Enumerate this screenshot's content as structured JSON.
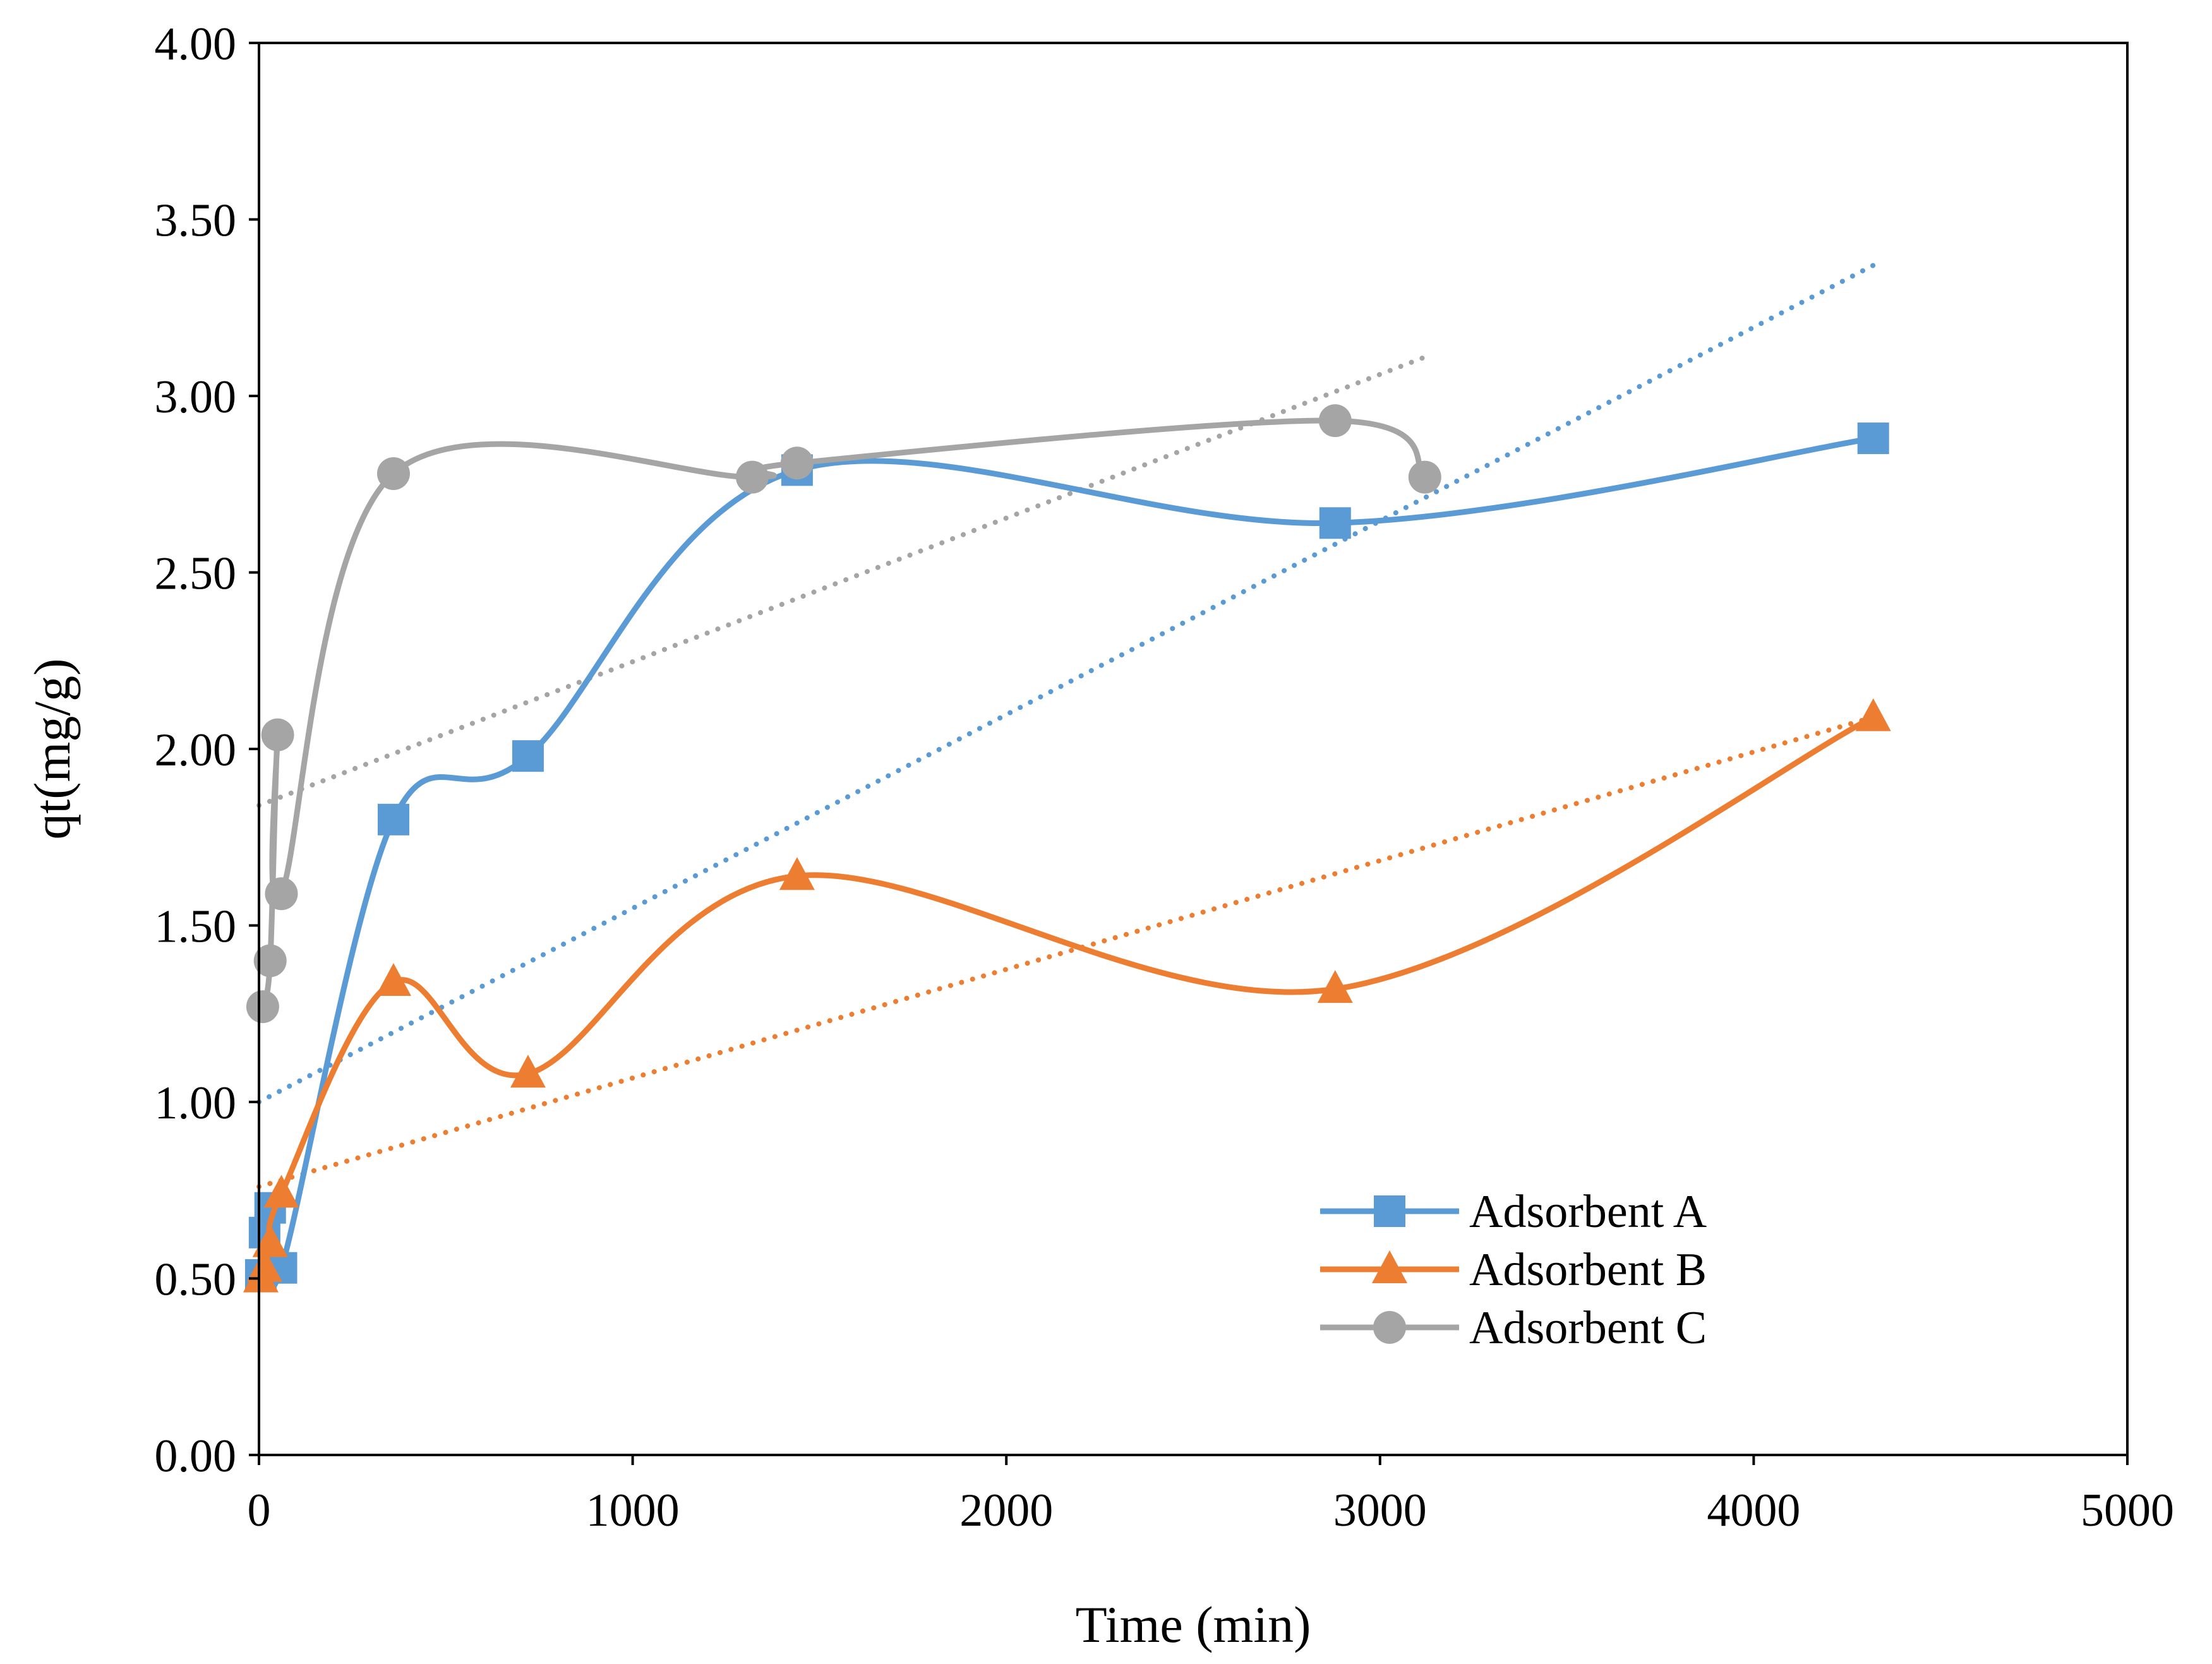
{
  "chart_data": {
    "type": "line",
    "title": "",
    "xlabel": "Time (min)",
    "ylabel": "qt(mg/g)",
    "xlim": [
      0,
      5000
    ],
    "ylim": [
      0,
      4
    ],
    "xticks": [
      0,
      1000,
      2000,
      3000,
      4000,
      5000
    ],
    "xtick_labels": [
      "0",
      "1000",
      "2000",
      "3000",
      "4000",
      "5000"
    ],
    "yticks": [
      0,
      0.5,
      1,
      1.5,
      2,
      2.5,
      3,
      3.5,
      4
    ],
    "ytick_labels": [
      "0.00",
      "0.50",
      "1.00",
      "1.50",
      "2.00",
      "2.50",
      "3.00",
      "3.50",
      "4.00"
    ],
    "grid": false,
    "legend_position": "bottom-right",
    "series": [
      {
        "name": "Adsorbent A",
        "color": "#5B9BD5",
        "marker": "square",
        "x": [
          5,
          15,
          30,
          60,
          360,
          720,
          1440,
          2880,
          4320
        ],
        "y": [
          0.51,
          0.63,
          0.7,
          0.53,
          1.8,
          1.98,
          2.79,
          2.64,
          2.88
        ]
      },
      {
        "name": "Adsorbent B",
        "color": "#ED7D31",
        "marker": "triangle",
        "x": [
          5,
          15,
          30,
          60,
          360,
          720,
          1440,
          2880,
          4320
        ],
        "y": [
          0.5,
          0.53,
          0.6,
          0.74,
          1.34,
          1.08,
          1.64,
          1.32,
          2.09
        ]
      },
      {
        "name": "Adsorbent C",
        "color": "#A5A5A5",
        "marker": "circle",
        "x": [
          10,
          30,
          50,
          60,
          360,
          1320,
          1440,
          2880,
          3120
        ],
        "y": [
          1.27,
          1.4,
          2.04,
          1.59,
          2.78,
          2.77,
          2.81,
          2.93,
          2.77
        ]
      }
    ],
    "trendlines": [
      {
        "series": "Adsorbent A",
        "color": "#5B9BD5",
        "x": [
          0,
          4320
        ],
        "y": [
          1.0,
          3.37
        ]
      },
      {
        "series": "Adsorbent B",
        "color": "#ED7D31",
        "x": [
          0,
          4320
        ],
        "y": [
          0.76,
          2.09
        ]
      },
      {
        "series": "Adsorbent C",
        "color": "#A5A5A5",
        "x": [
          0,
          3120
        ],
        "y": [
          1.84,
          3.11
        ]
      }
    ]
  }
}
